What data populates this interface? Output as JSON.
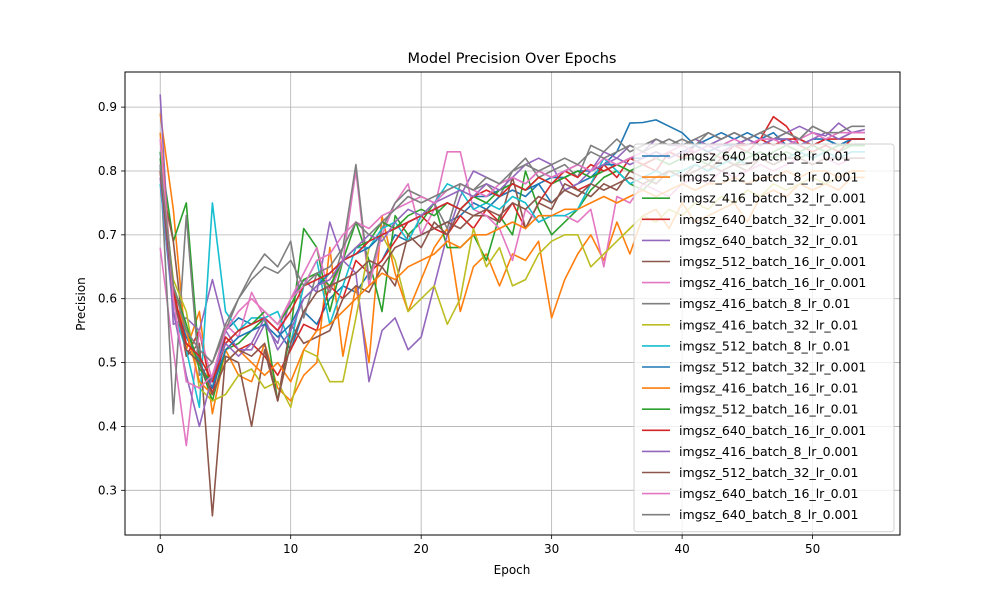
{
  "chart_data": {
    "type": "line",
    "title": "Model Precision Over Epochs",
    "xlabel": "Epoch",
    "ylabel": "Precision",
    "xlim": [
      -2.7,
      56.7
    ],
    "ylim": [
      0.23,
      0.955
    ],
    "xticks": [
      0,
      10,
      20,
      30,
      40,
      50
    ],
    "yticks": [
      0.3,
      0.4,
      0.5,
      0.6,
      0.7,
      0.8,
      0.9
    ],
    "grid": true,
    "legend_position": "center-right",
    "series": [
      {
        "name": "imgsz_640_batch_8_lr_0.01",
        "color": "#1f77b4",
        "values": [
          0.83,
          0.62,
          0.55,
          0.5,
          0.46,
          0.55,
          0.57,
          0.56,
          0.57,
          0.55,
          0.52,
          0.58,
          0.56,
          0.6,
          0.62,
          0.61,
          0.64,
          0.66,
          0.7,
          0.69,
          0.7,
          0.71,
          0.72,
          0.73,
          0.75,
          0.74,
          0.76,
          0.77,
          0.76,
          0.78,
          0.75,
          0.77,
          0.78,
          0.79,
          0.81,
          0.83,
          0.875,
          0.876,
          0.88,
          0.87,
          0.86,
          0.84,
          0.85,
          0.86,
          0.85,
          0.86,
          0.85,
          0.86,
          0.84,
          0.85,
          0.84,
          0.85,
          0.84,
          0.85,
          0.85
        ]
      },
      {
        "name": "imgsz_512_batch_8_lr_0.001",
        "color": "#ff7f0e",
        "values": [
          0.89,
          0.74,
          0.52,
          0.58,
          0.42,
          0.52,
          0.48,
          0.47,
          0.53,
          0.46,
          0.44,
          0.48,
          0.5,
          0.68,
          0.51,
          0.62,
          0.5,
          0.73,
          0.64,
          0.58,
          0.63,
          0.68,
          0.71,
          0.58,
          0.65,
          0.67,
          0.62,
          0.67,
          0.66,
          0.69,
          0.57,
          0.63,
          0.67,
          0.7,
          0.66,
          0.72,
          0.67,
          0.73,
          0.74,
          0.71,
          0.75,
          0.72,
          0.73,
          0.74,
          0.75,
          0.72,
          0.76,
          0.77,
          0.76,
          0.78,
          0.77,
          0.78,
          0.77,
          0.79,
          0.79
        ]
      },
      {
        "name": "imgsz_416_batch_32_lr_0.001",
        "color": "#2ca02c",
        "values": [
          0.83,
          0.69,
          0.75,
          0.5,
          0.44,
          0.52,
          0.53,
          0.55,
          0.57,
          0.44,
          0.55,
          0.71,
          0.68,
          0.58,
          0.66,
          0.72,
          0.66,
          0.58,
          0.73,
          0.7,
          0.72,
          0.75,
          0.68,
          0.68,
          0.7,
          0.66,
          0.73,
          0.7,
          0.8,
          0.74,
          0.7,
          0.72,
          0.74,
          0.77,
          0.79,
          0.8,
          0.78,
          0.77,
          0.79,
          0.8,
          0.8,
          0.81,
          0.8,
          0.82,
          0.81,
          0.82,
          0.83,
          0.82,
          0.83,
          0.82,
          0.83,
          0.84,
          0.83,
          0.84,
          0.84
        ]
      },
      {
        "name": "imgsz_640_batch_32_lr_0.001",
        "color": "#d62728",
        "values": [
          0.8,
          0.62,
          0.51,
          0.55,
          0.45,
          0.54,
          0.52,
          0.53,
          0.51,
          0.48,
          0.52,
          0.56,
          0.55,
          0.62,
          0.6,
          0.66,
          0.64,
          0.66,
          0.69,
          0.72,
          0.73,
          0.71,
          0.7,
          0.73,
          0.71,
          0.74,
          0.72,
          0.75,
          0.71,
          0.75,
          0.78,
          0.79,
          0.77,
          0.78,
          0.81,
          0.79,
          0.82,
          0.81,
          0.8,
          0.83,
          0.82,
          0.84,
          0.83,
          0.82,
          0.84,
          0.83,
          0.85,
          0.885,
          0.87,
          0.84,
          0.83,
          0.84,
          0.83,
          0.85,
          0.85
        ]
      },
      {
        "name": "imgsz_640_batch_32_lr_0.01",
        "color": "#9467bd",
        "values": [
          0.92,
          0.56,
          0.57,
          0.55,
          0.63,
          0.55,
          0.52,
          0.52,
          0.56,
          0.53,
          0.6,
          0.63,
          0.61,
          0.72,
          0.66,
          0.64,
          0.47,
          0.55,
          0.57,
          0.52,
          0.54,
          0.62,
          0.7,
          0.76,
          0.8,
          0.79,
          0.78,
          0.79,
          0.81,
          0.82,
          0.81,
          0.77,
          0.78,
          0.8,
          0.83,
          0.82,
          0.84,
          0.83,
          0.85,
          0.84,
          0.84,
          0.85,
          0.84,
          0.85,
          0.86,
          0.85,
          0.86,
          0.85,
          0.86,
          0.87,
          0.86,
          0.855,
          0.875,
          0.86,
          0.865
        ]
      },
      {
        "name": "imgsz_512_batch_16_lr_0.001",
        "color": "#8c564b",
        "values": [
          0.79,
          0.69,
          0.51,
          0.53,
          0.26,
          0.51,
          0.5,
          0.4,
          0.52,
          0.44,
          0.56,
          0.53,
          0.54,
          0.55,
          0.6,
          0.62,
          0.61,
          0.65,
          0.62,
          0.7,
          0.68,
          0.72,
          0.7,
          0.74,
          0.73,
          0.73,
          0.72,
          0.79,
          0.71,
          0.75,
          0.74,
          0.78,
          0.77,
          0.76,
          0.78,
          0.77,
          0.8,
          0.79,
          0.78,
          0.8,
          0.79,
          0.81,
          0.8,
          0.82,
          0.81,
          0.8,
          0.82,
          0.81,
          0.82,
          0.83,
          0.82,
          0.83,
          0.82,
          0.83,
          0.83
        ]
      },
      {
        "name": "imgsz_416_batch_16_lr_0.001",
        "color": "#e377c2",
        "values": [
          0.68,
          0.52,
          0.37,
          0.55,
          0.47,
          0.56,
          0.54,
          0.61,
          0.57,
          0.55,
          0.6,
          0.64,
          0.68,
          0.61,
          0.66,
          0.8,
          0.62,
          0.7,
          0.75,
          0.78,
          0.7,
          0.74,
          0.83,
          0.83,
          0.74,
          0.73,
          0.71,
          0.66,
          0.74,
          0.72,
          0.73,
          0.73,
          0.72,
          0.74,
          0.65,
          0.76,
          0.75,
          0.78,
          0.77,
          0.76,
          0.78,
          0.79,
          0.78,
          0.8,
          0.79,
          0.8,
          0.81,
          0.8,
          0.81,
          0.82,
          0.81,
          0.82,
          0.81,
          0.82,
          0.82
        ]
      },
      {
        "name": "imgsz_416_batch_8_lr_0.01",
        "color": "#7f7f7f",
        "values": [
          0.81,
          0.42,
          0.73,
          0.48,
          0.5,
          0.55,
          0.6,
          0.64,
          0.67,
          0.65,
          0.69,
          0.57,
          0.64,
          0.61,
          0.68,
          0.81,
          0.63,
          0.71,
          0.75,
          0.77,
          0.76,
          0.75,
          0.71,
          0.78,
          0.77,
          0.78,
          0.76,
          0.8,
          0.82,
          0.79,
          0.8,
          0.81,
          0.79,
          0.84,
          0.83,
          0.85,
          0.83,
          0.84,
          0.85,
          0.84,
          0.85,
          0.84,
          0.86,
          0.85,
          0.86,
          0.85,
          0.86,
          0.85,
          0.86,
          0.85,
          0.87,
          0.86,
          0.85,
          0.86,
          0.86
        ]
      },
      {
        "name": "imgsz_416_batch_32_lr_0.01",
        "color": "#bcbd22",
        "values": [
          0.8,
          0.63,
          0.58,
          0.46,
          0.44,
          0.45,
          0.48,
          0.49,
          0.46,
          0.47,
          0.43,
          0.52,
          0.51,
          0.47,
          0.47,
          0.57,
          0.68,
          0.7,
          0.66,
          0.58,
          0.6,
          0.62,
          0.56,
          0.6,
          0.71,
          0.65,
          0.68,
          0.62,
          0.63,
          0.67,
          0.69,
          0.7,
          0.7,
          0.65,
          0.67,
          0.69,
          0.71,
          0.73,
          0.72,
          0.74,
          0.73,
          0.75,
          0.74,
          0.76,
          0.75,
          0.77,
          0.76,
          0.78,
          0.77,
          0.78,
          0.79,
          0.78,
          0.79,
          0.8,
          0.8
        ]
      },
      {
        "name": "imgsz_512_batch_8_lr_0.01",
        "color": "#17becf",
        "values": [
          0.78,
          0.58,
          0.52,
          0.43,
          0.75,
          0.58,
          0.55,
          0.57,
          0.57,
          0.58,
          0.53,
          0.62,
          0.66,
          0.56,
          0.62,
          0.68,
          0.68,
          0.71,
          0.72,
          0.69,
          0.73,
          0.75,
          0.78,
          0.77,
          0.74,
          0.75,
          0.74,
          0.76,
          0.75,
          0.72,
          0.73,
          0.73,
          0.74,
          0.78,
          0.82,
          0.8,
          0.78,
          0.79,
          0.8,
          0.79,
          0.8,
          0.81,
          0.8,
          0.81,
          0.82,
          0.81,
          0.82,
          0.81,
          0.82,
          0.83,
          0.82,
          0.83,
          0.82,
          0.83,
          0.83
        ]
      },
      {
        "name": "imgsz_512_batch_32_lr_0.001",
        "color": "#1f77b4",
        "values": [
          0.81,
          0.6,
          0.54,
          0.5,
          0.46,
          0.52,
          0.54,
          0.55,
          0.56,
          0.54,
          0.56,
          0.6,
          0.62,
          0.64,
          0.66,
          0.67,
          0.68,
          0.7,
          0.71,
          0.72,
          0.73,
          0.74,
          0.75,
          0.74,
          0.76,
          0.76,
          0.77,
          0.78,
          0.77,
          0.78,
          0.79,
          0.79,
          0.8,
          0.8,
          0.81,
          0.81,
          0.82,
          0.82,
          0.83,
          0.82,
          0.83,
          0.84,
          0.83,
          0.84,
          0.84,
          0.85,
          0.84,
          0.85,
          0.85,
          0.84,
          0.85,
          0.85,
          0.84,
          0.85,
          0.85
        ]
      },
      {
        "name": "imgsz_416_batch_16_lr_0.01",
        "color": "#ff7f0e",
        "values": [
          0.86,
          0.6,
          0.55,
          0.47,
          0.45,
          0.5,
          0.52,
          0.5,
          0.48,
          0.5,
          0.47,
          0.52,
          0.55,
          0.56,
          0.58,
          0.6,
          0.62,
          0.64,
          0.63,
          0.65,
          0.66,
          0.67,
          0.69,
          0.68,
          0.7,
          0.7,
          0.71,
          0.72,
          0.71,
          0.73,
          0.73,
          0.74,
          0.74,
          0.75,
          0.76,
          0.75,
          0.76,
          0.77,
          0.76,
          0.77,
          0.78,
          0.77,
          0.78,
          0.78,
          0.79,
          0.78,
          0.79,
          0.79,
          0.8,
          0.79,
          0.8,
          0.8,
          0.79,
          0.8,
          0.8
        ]
      },
      {
        "name": "imgsz_512_batch_16_lr_0.01",
        "color": "#2ca02c",
        "values": [
          0.82,
          0.62,
          0.56,
          0.49,
          0.47,
          0.53,
          0.55,
          0.56,
          0.58,
          0.56,
          0.59,
          0.63,
          0.64,
          0.62,
          0.66,
          0.68,
          0.69,
          0.72,
          0.71,
          0.73,
          0.74,
          0.73,
          0.75,
          0.74,
          0.76,
          0.75,
          0.77,
          0.78,
          0.77,
          0.79,
          0.78,
          0.79,
          0.8,
          0.79,
          0.8,
          0.81,
          0.8,
          0.81,
          0.82,
          0.81,
          0.82,
          0.82,
          0.81,
          0.83,
          0.82,
          0.83,
          0.82,
          0.83,
          0.84,
          0.83,
          0.84,
          0.83,
          0.84,
          0.84,
          0.84
        ]
      },
      {
        "name": "imgsz_640_batch_16_lr_0.001",
        "color": "#d62728",
        "values": [
          0.8,
          0.61,
          0.53,
          0.51,
          0.47,
          0.53,
          0.55,
          0.56,
          0.57,
          0.55,
          0.58,
          0.62,
          0.63,
          0.64,
          0.66,
          0.67,
          0.69,
          0.7,
          0.71,
          0.72,
          0.73,
          0.74,
          0.75,
          0.74,
          0.76,
          0.77,
          0.76,
          0.78,
          0.77,
          0.79,
          0.78,
          0.8,
          0.79,
          0.81,
          0.8,
          0.81,
          0.82,
          0.81,
          0.82,
          0.83,
          0.82,
          0.83,
          0.84,
          0.83,
          0.84,
          0.84,
          0.85,
          0.84,
          0.85,
          0.85,
          0.84,
          0.85,
          0.85,
          0.85,
          0.85
        ]
      },
      {
        "name": "imgsz_416_batch_8_lr_0.001",
        "color": "#9467bd",
        "values": [
          0.79,
          0.58,
          0.48,
          0.4,
          0.48,
          0.53,
          0.51,
          0.53,
          0.57,
          0.52,
          0.55,
          0.6,
          0.62,
          0.63,
          0.66,
          0.68,
          0.7,
          0.69,
          0.72,
          0.74,
          0.73,
          0.75,
          0.76,
          0.77,
          0.76,
          0.78,
          0.77,
          0.79,
          0.78,
          0.8,
          0.79,
          0.8,
          0.81,
          0.8,
          0.81,
          0.82,
          0.81,
          0.82,
          0.83,
          0.82,
          0.83,
          0.83,
          0.84,
          0.83,
          0.84,
          0.85,
          0.84,
          0.85,
          0.85,
          0.84,
          0.85,
          0.86,
          0.85,
          0.86,
          0.86
        ]
      },
      {
        "name": "imgsz_512_batch_32_lr_0.01",
        "color": "#8c564b",
        "values": [
          0.8,
          0.6,
          0.52,
          0.5,
          0.45,
          0.5,
          0.52,
          0.51,
          0.53,
          0.44,
          0.53,
          0.58,
          0.61,
          0.62,
          0.63,
          0.64,
          0.66,
          0.65,
          0.68,
          0.69,
          0.7,
          0.71,
          0.72,
          0.71,
          0.73,
          0.74,
          0.73,
          0.75,
          0.74,
          0.76,
          0.75,
          0.77,
          0.76,
          0.78,
          0.77,
          0.78,
          0.79,
          0.78,
          0.79,
          0.8,
          0.79,
          0.8,
          0.81,
          0.8,
          0.81,
          0.81,
          0.82,
          0.81,
          0.82,
          0.82,
          0.81,
          0.82,
          0.82,
          0.82,
          0.82
        ]
      },
      {
        "name": "imgsz_640_batch_16_lr_0.01",
        "color": "#e377c2",
        "values": [
          0.85,
          0.6,
          0.47,
          0.46,
          0.48,
          0.55,
          0.58,
          0.6,
          0.58,
          0.56,
          0.6,
          0.62,
          0.66,
          0.67,
          0.7,
          0.72,
          0.71,
          0.73,
          0.74,
          0.75,
          0.76,
          0.75,
          0.77,
          0.78,
          0.77,
          0.76,
          0.78,
          0.79,
          0.78,
          0.8,
          0.79,
          0.8,
          0.81,
          0.8,
          0.82,
          0.81,
          0.82,
          0.83,
          0.82,
          0.83,
          0.84,
          0.83,
          0.84,
          0.84,
          0.85,
          0.84,
          0.85,
          0.85,
          0.84,
          0.85,
          0.86,
          0.85,
          0.86,
          0.86,
          0.86
        ]
      },
      {
        "name": "imgsz_640_batch_8_lr_0.001",
        "color": "#7f7f7f",
        "values": [
          0.81,
          0.62,
          0.55,
          0.52,
          0.5,
          0.56,
          0.6,
          0.63,
          0.65,
          0.64,
          0.66,
          0.62,
          0.64,
          0.65,
          0.68,
          0.72,
          0.7,
          0.72,
          0.74,
          0.76,
          0.75,
          0.76,
          0.77,
          0.78,
          0.77,
          0.79,
          0.78,
          0.8,
          0.81,
          0.8,
          0.81,
          0.82,
          0.81,
          0.83,
          0.82,
          0.83,
          0.84,
          0.83,
          0.84,
          0.85,
          0.84,
          0.85,
          0.86,
          0.85,
          0.86,
          0.85,
          0.86,
          0.87,
          0.86,
          0.85,
          0.87,
          0.86,
          0.86,
          0.87,
          0.87
        ]
      }
    ]
  }
}
